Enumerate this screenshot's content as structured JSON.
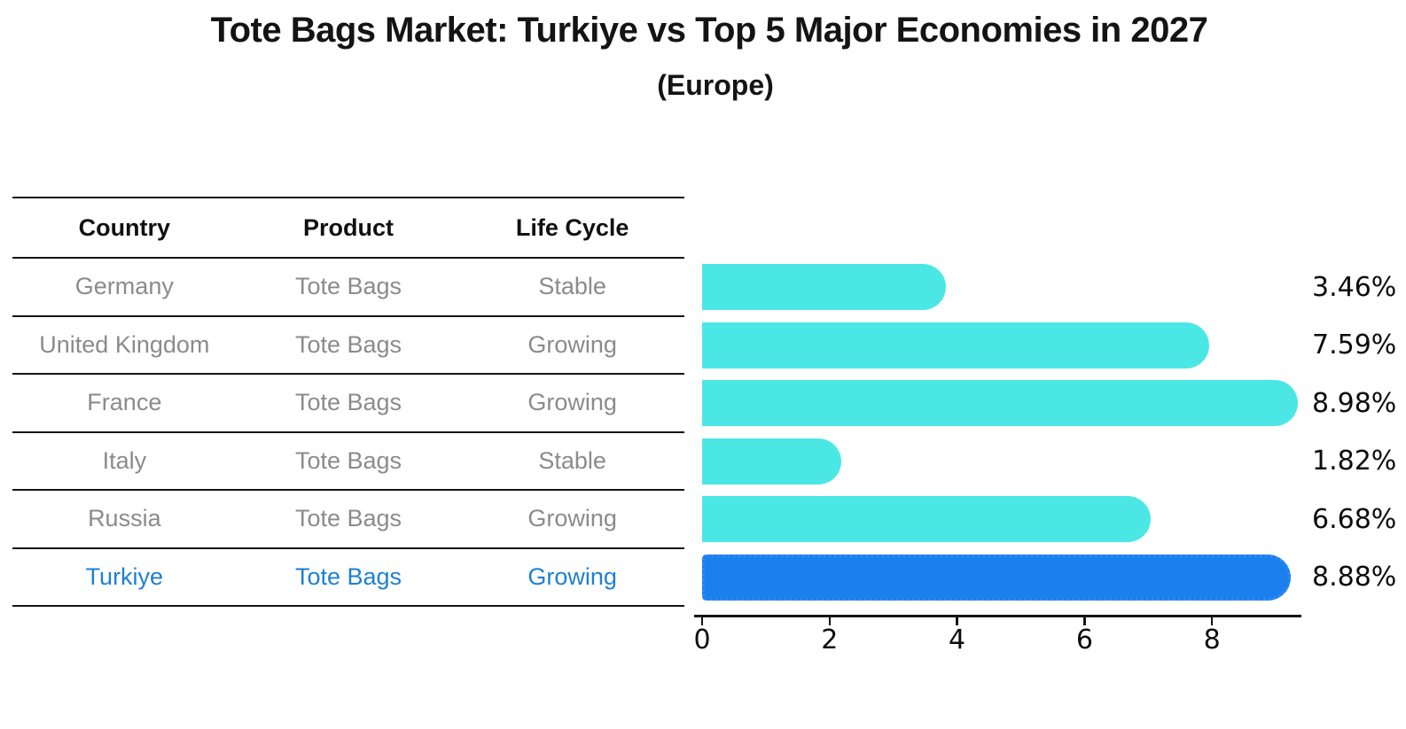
{
  "title": "Tote Bags Market: Turkiye vs Top 5 Major Economies in 2027",
  "subtitle": "(Europe)",
  "table": {
    "headers": [
      "Country",
      "Product",
      "Life Cycle"
    ],
    "rows": [
      {
        "country": "Germany",
        "product": "Tote Bags",
        "life_cycle": "Stable"
      },
      {
        "country": "United Kingdom",
        "product": "Tote Bags",
        "life_cycle": "Growing"
      },
      {
        "country": "France",
        "product": "Tote Bags",
        "life_cycle": "Growing"
      },
      {
        "country": "Italy",
        "product": "Tote Bags",
        "life_cycle": "Stable"
      },
      {
        "country": "Russia",
        "product": "Tote Bags",
        "life_cycle": "Growing"
      },
      {
        "country": "Turkiye",
        "product": "Tote Bags",
        "life_cycle": "Growing"
      }
    ],
    "highlight_row": "Turkiye"
  },
  "chart_data": {
    "type": "bar",
    "orientation": "horizontal",
    "title": "Tote Bags Market: Turkiye vs Top 5 Major Economies in 2027 (Europe)",
    "categories": [
      "Germany",
      "United Kingdom",
      "France",
      "Italy",
      "Russia",
      "Turkiye"
    ],
    "values": [
      3.46,
      7.59,
      8.98,
      1.82,
      6.68,
      8.88
    ],
    "value_labels": [
      "3.46%",
      "7.59%",
      "8.98%",
      "1.82%",
      "6.68%",
      "8.88%"
    ],
    "unit": "%",
    "xticks": [
      0,
      2,
      4,
      6,
      8
    ],
    "xlim": [
      0,
      9.4
    ],
    "grid": false,
    "legend": false,
    "bar_color": "#4be7e5",
    "highlight_color": "#1c7fee",
    "highlight_index": 5,
    "highlight_text_color": "#1e7fd4",
    "axis_color": "#151515"
  }
}
